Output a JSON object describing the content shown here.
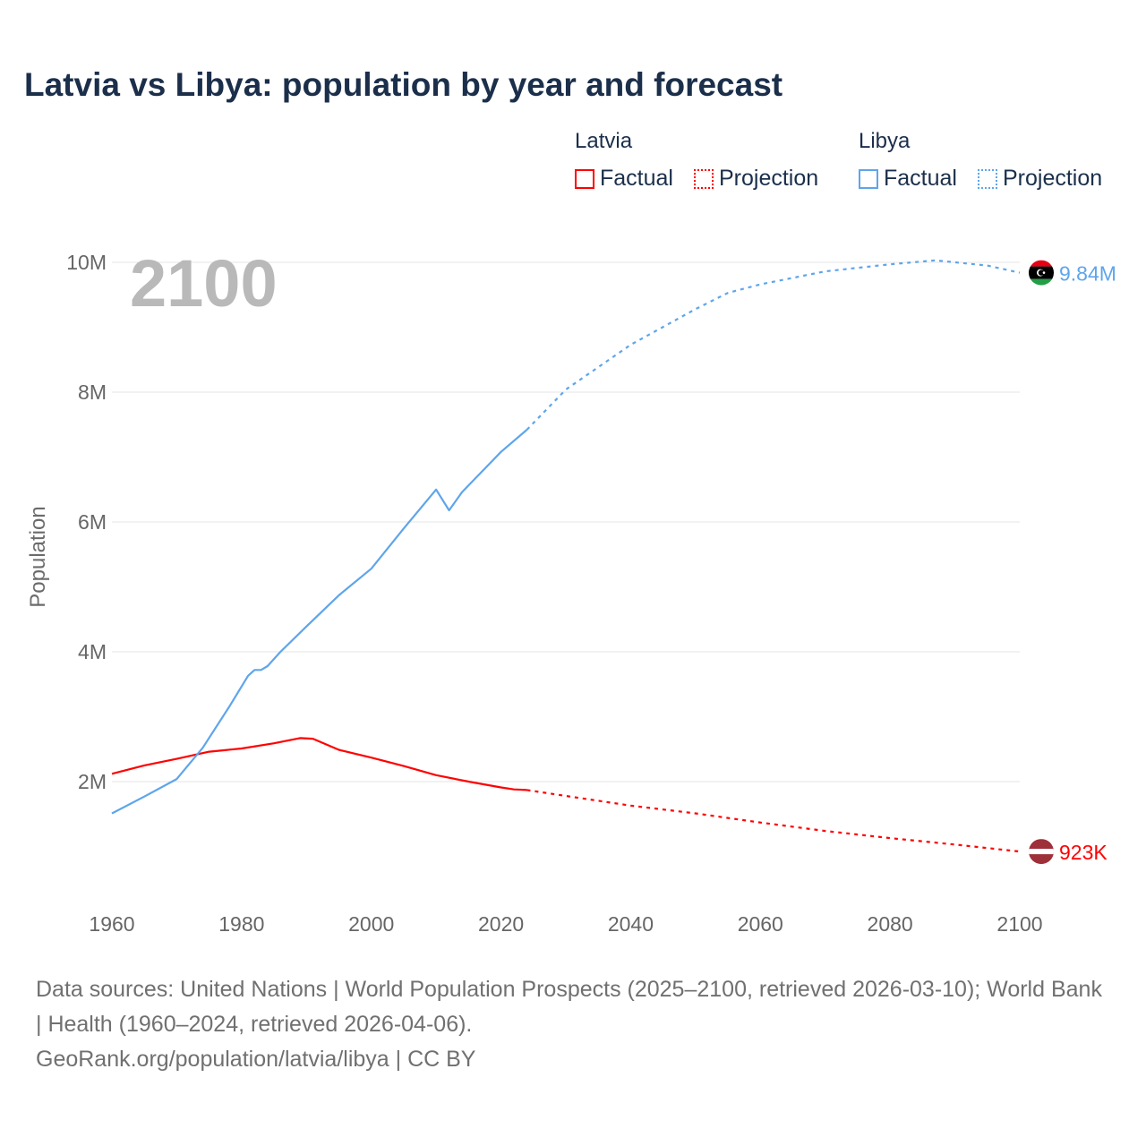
{
  "title": "Latvia vs Libya: population by year and forecast",
  "legend": {
    "groups": [
      {
        "name": "Latvia",
        "color": "#ff0000",
        "factual": "Factual",
        "projection": "Projection"
      },
      {
        "name": "Libya",
        "color": "#5ea5ec",
        "factual": "Factual",
        "projection": "Projection"
      }
    ]
  },
  "year_label": "2100",
  "footer": {
    "sources": "Data sources: United Nations | World Population Prospects (2025–2100, retrieved 2026-03-10); World Bank | Health (1960–2024, retrieved 2026-04-06).",
    "credit": "GeoRank.org/population/latvia/libya | CC BY"
  },
  "chart_data": {
    "type": "line",
    "title": "Latvia vs Libya: population by year and forecast",
    "xlabel": "",
    "ylabel": "Population",
    "xlim": [
      1960,
      2100
    ],
    "ylim": [
      0,
      10000000
    ],
    "grid": true,
    "legend_position": "top-right",
    "x_ticks": [
      1960,
      1980,
      2000,
      2020,
      2040,
      2060,
      2080,
      2100
    ],
    "x_tick_labels": [
      "1960",
      "1980",
      "2000",
      "2020",
      "2040",
      "2060",
      "2080",
      "2100"
    ],
    "y_ticks": [
      2000000,
      4000000,
      6000000,
      8000000,
      10000000
    ],
    "y_tick_labels": [
      "2M",
      "4M",
      "6M",
      "8M",
      "10M"
    ],
    "series": [
      {
        "name": "Latvia",
        "color": "#ff0000",
        "end_label": "923K",
        "factual": [
          [
            1960,
            2.12
          ],
          [
            1965,
            2.25
          ],
          [
            1970,
            2.35
          ],
          [
            1975,
            2.46
          ],
          [
            1980,
            2.51
          ],
          [
            1985,
            2.59
          ],
          [
            1989,
            2.67
          ],
          [
            1991,
            2.66
          ],
          [
            1995,
            2.49
          ],
          [
            2000,
            2.37
          ],
          [
            2005,
            2.24
          ],
          [
            2010,
            2.1
          ],
          [
            2015,
            2.0
          ],
          [
            2020,
            1.91
          ],
          [
            2022,
            1.88
          ],
          [
            2024,
            1.87
          ]
        ],
        "projection": [
          [
            2024,
            1.87
          ],
          [
            2030,
            1.78
          ],
          [
            2040,
            1.63
          ],
          [
            2050,
            1.51
          ],
          [
            2060,
            1.37
          ],
          [
            2070,
            1.24
          ],
          [
            2080,
            1.13
          ],
          [
            2090,
            1.03
          ],
          [
            2100,
            0.923
          ]
        ]
      },
      {
        "name": "Libya",
        "color": "#5ea5ec",
        "end_label": "9.84M",
        "factual": [
          [
            1960,
            1.51
          ],
          [
            1965,
            1.77
          ],
          [
            1970,
            2.04
          ],
          [
            1974,
            2.52
          ],
          [
            1978,
            3.14
          ],
          [
            1981,
            3.63
          ],
          [
            1982,
            3.72
          ],
          [
            1983,
            3.72
          ],
          [
            1984,
            3.78
          ],
          [
            1986,
            4.0
          ],
          [
            1990,
            4.39
          ],
          [
            1995,
            4.87
          ],
          [
            2000,
            5.28
          ],
          [
            2005,
            5.9
          ],
          [
            2010,
            6.5
          ],
          [
            2012,
            6.18
          ],
          [
            2014,
            6.46
          ],
          [
            2020,
            7.08
          ],
          [
            2024,
            7.42
          ]
        ],
        "projection": [
          [
            2024,
            7.42
          ],
          [
            2030,
            8.04
          ],
          [
            2040,
            8.73
          ],
          [
            2050,
            9.28
          ],
          [
            2055,
            9.53
          ],
          [
            2060,
            9.66
          ],
          [
            2070,
            9.86
          ],
          [
            2080,
            9.97
          ],
          [
            2087,
            10.03
          ],
          [
            2095,
            9.95
          ],
          [
            2100,
            9.84
          ]
        ]
      }
    ],
    "units_note": "values in millions"
  }
}
